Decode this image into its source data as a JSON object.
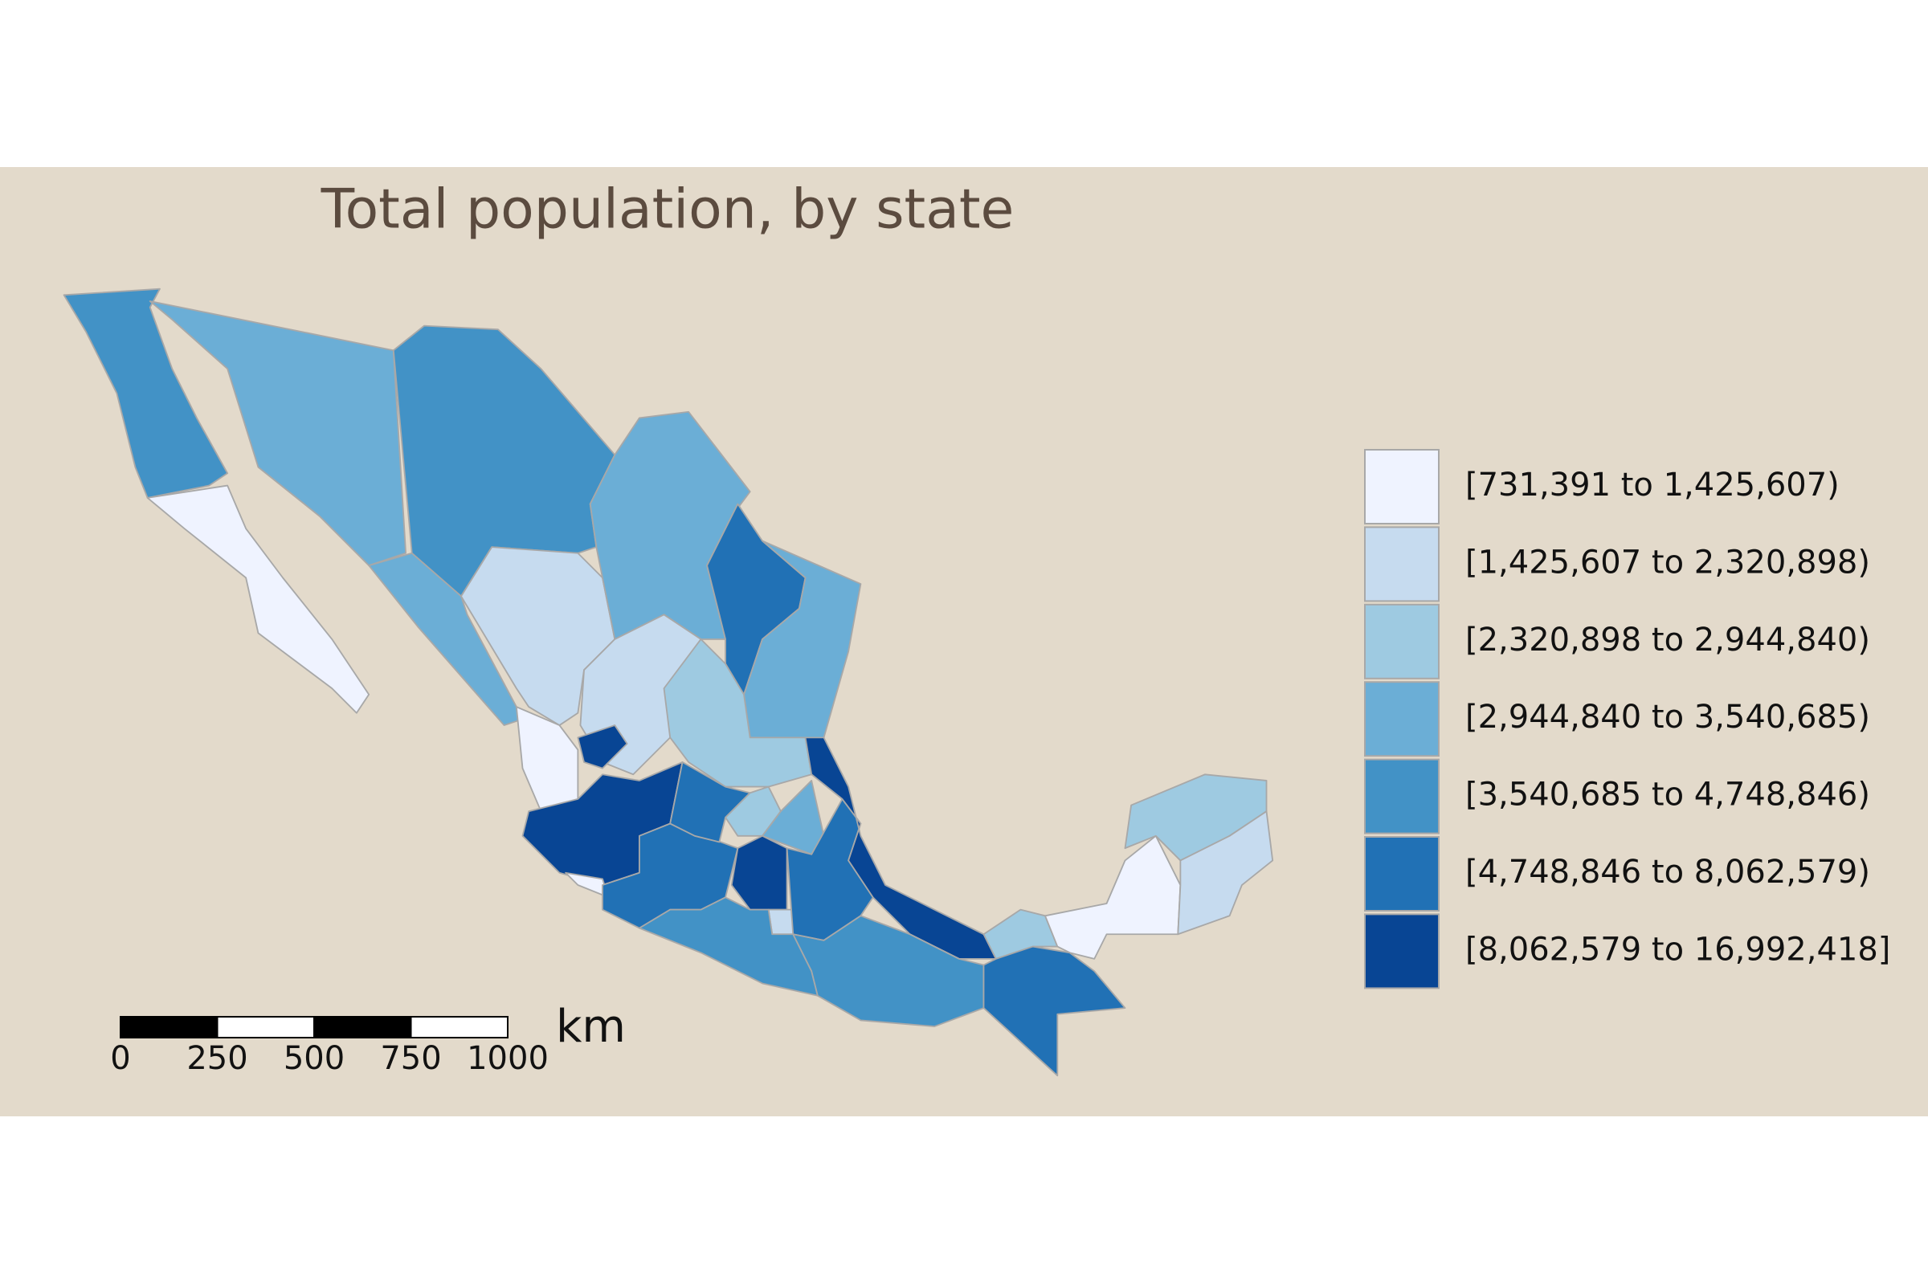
{
  "title": "Total population, by state",
  "legend": [
    {
      "label": "[731,391 to 1,425,607)",
      "color": "#eff3ff"
    },
    {
      "label": "[1,425,607 to 2,320,898)",
      "color": "#c6dbef"
    },
    {
      "label": "[2,320,898 to 2,944,840)",
      "color": "#9ecae1"
    },
    {
      "label": "[2,944,840 to 3,540,685)",
      "color": "#6baed6"
    },
    {
      "label": "[3,540,685 to 4,748,846)",
      "color": "#4292c6"
    },
    {
      "label": "[4,748,846 to 8,062,579)",
      "color": "#2171b5"
    },
    {
      "label": "[8,062,579 to 16,992,418]",
      "color": "#084594"
    }
  ],
  "scale_bar": {
    "ticks": [
      0,
      250,
      500,
      750,
      1000
    ],
    "unit": "km"
  }
}
